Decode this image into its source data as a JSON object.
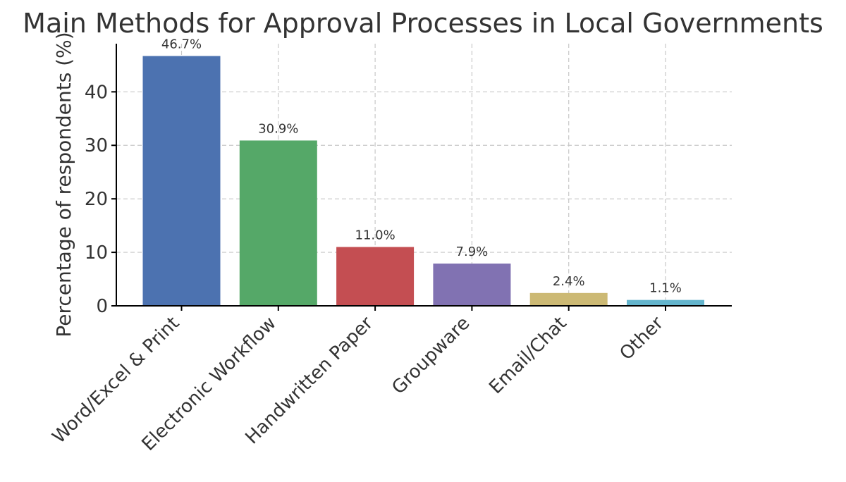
{
  "chart_data": {
    "type": "bar",
    "title": "Main Methods for Approval Processes in Local Governments",
    "xlabel": "",
    "ylabel": "Percentage of respondents (%)",
    "categories": [
      "Word/Excel & Print",
      "Electronic Workflow",
      "Handwritten Paper",
      "Groupware",
      "Email/Chat",
      "Other"
    ],
    "values": [
      46.7,
      30.9,
      11.0,
      7.9,
      2.4,
      1.1
    ],
    "data_labels": [
      "46.7%",
      "30.9%",
      "11.0%",
      "7.9%",
      "2.4%",
      "1.1%"
    ],
    "colors": [
      "#4c72b0",
      "#55a868",
      "#c44e52",
      "#8172b2",
      "#ccb974",
      "#64b5cd"
    ],
    "yticks": [
      0,
      10,
      20,
      30,
      40
    ],
    "ylim": [
      0,
      49
    ],
    "grid": true,
    "legend": "none"
  }
}
